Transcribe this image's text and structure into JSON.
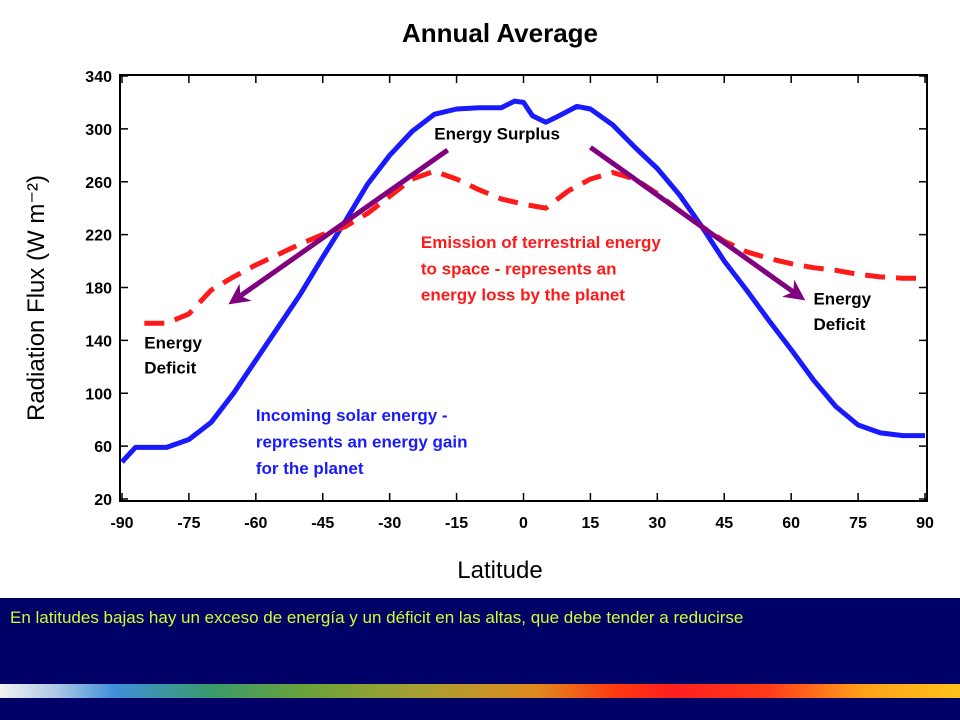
{
  "caption": "En latitudes bajas hay un exceso de energía y un déficit en las altas, que debe tender a reducirse",
  "colors": {
    "incoming": "#1a1aff",
    "emission": "#ff1a1a",
    "arrow": "#800080",
    "caption_bg": "#000066",
    "caption_text": "#ccff33"
  },
  "chart_data": {
    "type": "line",
    "title": "Annual Average",
    "xlabel": "Latitude",
    "ylabel": "Radiation Flux (W m⁻²)",
    "xlim": [
      -90,
      90
    ],
    "ylim": [
      20,
      340
    ],
    "xticks": [
      -90,
      -75,
      -60,
      -45,
      -30,
      -15,
      0,
      15,
      30,
      45,
      60,
      75,
      90
    ],
    "yticks": [
      20,
      60,
      100,
      140,
      180,
      220,
      260,
      300,
      340
    ],
    "grid": false,
    "series": [
      {
        "key": "incoming",
        "style": "solid",
        "x": [
          -90,
          -87,
          -80,
          -75,
          -70,
          -65,
          -60,
          -55,
          -50,
          -45,
          -40,
          -35,
          -30,
          -25,
          -20,
          -15,
          -10,
          -5,
          -2,
          0,
          2,
          5,
          8,
          12,
          15,
          20,
          25,
          30,
          35,
          40,
          45,
          50,
          55,
          60,
          65,
          70,
          75,
          80,
          85,
          90
        ],
        "y": [
          48,
          59,
          59,
          65,
          78,
          100,
          125,
          150,
          175,
          203,
          230,
          258,
          280,
          298,
          311,
          315,
          316,
          316,
          321,
          320,
          310,
          305,
          310,
          317,
          315,
          303,
          286,
          270,
          250,
          226,
          200,
          178,
          155,
          133,
          110,
          90,
          76,
          70,
          68,
          68
        ]
      },
      {
        "key": "emission",
        "style": "dashed",
        "x": [
          -85,
          -80,
          -75,
          -70,
          -65,
          -60,
          -55,
          -50,
          -45,
          -40,
          -35,
          -30,
          -25,
          -20,
          -15,
          -10,
          -5,
          0,
          5,
          10,
          15,
          20,
          25,
          30,
          35,
          40,
          45,
          50,
          55,
          60,
          65,
          70,
          75,
          80,
          85,
          90
        ],
        "y": [
          153,
          153,
          160,
          178,
          188,
          197,
          205,
          213,
          220,
          226,
          236,
          249,
          262,
          268,
          262,
          254,
          247,
          243,
          240,
          253,
          262,
          267,
          262,
          251,
          238,
          226,
          215,
          207,
          202,
          198,
          195,
          193,
          190,
          188,
          187,
          187
        ]
      }
    ],
    "annotations": [
      {
        "text": "Energy Surplus",
        "color": "#000000",
        "x": -20,
        "y": 292
      },
      {
        "text": "Emission of terrestrial energy",
        "color": "#ff1a1a",
        "x": -23,
        "y": 210
      },
      {
        "text": "to space - represents an",
        "color": "#ff1a1a",
        "x": -23,
        "y": 190
      },
      {
        "text": "energy loss by the planet",
        "color": "#ff1a1a",
        "x": -23,
        "y": 170
      },
      {
        "text": "Energy",
        "color": "#000000",
        "x": -85,
        "y": 134
      },
      {
        "text": "Deficit",
        "color": "#000000",
        "x": -85,
        "y": 115
      },
      {
        "text": "Energy",
        "color": "#000000",
        "x": 65,
        "y": 167
      },
      {
        "text": "Deficit",
        "color": "#000000",
        "x": 65,
        "y": 148
      },
      {
        "text": "Incoming solar energy -",
        "color": "#1a1aff",
        "x": -60,
        "y": 79
      },
      {
        "text": "represents an energy gain",
        "color": "#1a1aff",
        "x": -60,
        "y": 59
      },
      {
        "text": "for the planet",
        "color": "#1a1aff",
        "x": -60,
        "y": 39
      }
    ],
    "arrows": [
      {
        "from": [
          -17,
          284
        ],
        "to": [
          -65,
          170
        ]
      },
      {
        "from": [
          15,
          286
        ],
        "to": [
          62,
          173
        ]
      }
    ]
  }
}
